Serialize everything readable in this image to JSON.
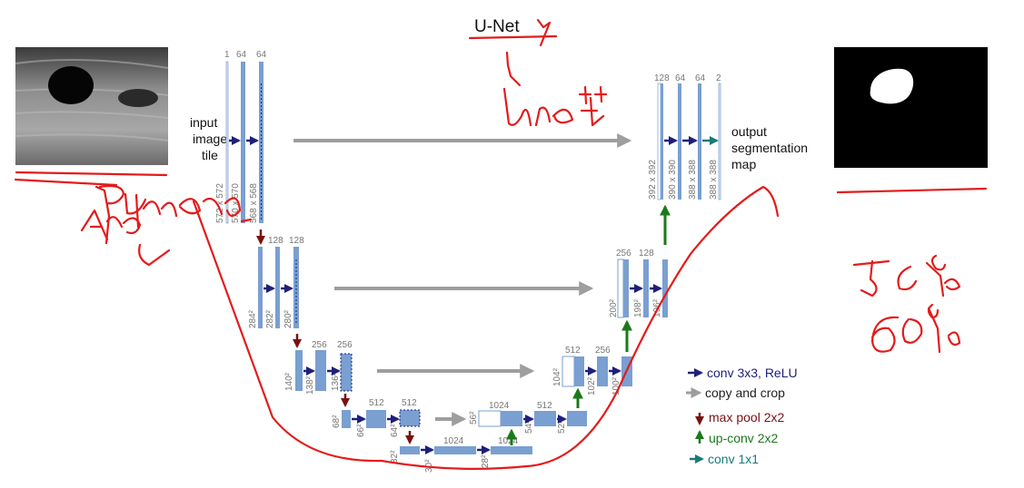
{
  "title": "U-Net",
  "input_label": [
    "input",
    "image",
    "tile"
  ],
  "output_label": [
    "output",
    "segmentation",
    "map"
  ],
  "channels": {
    "l1_enc": [
      "1",
      "64",
      "64"
    ],
    "l2_enc": [
      "128",
      "128"
    ],
    "l3_enc": [
      "256",
      "256"
    ],
    "l4_enc": [
      "512",
      "512"
    ],
    "bottom": [
      "1024",
      "1024"
    ],
    "l4_dec": [
      "1024",
      "512"
    ],
    "l3_dec": [
      "512",
      "256"
    ],
    "l2_dec": [
      "256",
      "128"
    ],
    "l1_dec": [
      "128",
      "64",
      "64",
      "2"
    ]
  },
  "dims": {
    "l1_enc": [
      "572 x 572",
      "570 x 570",
      "568 x 568"
    ],
    "l2_enc": [
      "284²",
      "282²",
      "280²"
    ],
    "l3_enc": [
      "140²",
      "138²",
      "136²"
    ],
    "l4_enc": [
      "68²",
      "66²",
      "64²"
    ],
    "bottom": [
      "32²",
      "30²",
      "28²"
    ],
    "l4_dec": [
      "56²",
      "54²",
      "52²"
    ],
    "l3_dec": [
      "104²",
      "102²",
      "100²"
    ],
    "l2_dec": [
      "200²",
      "198²",
      "196²"
    ],
    "l1_dec": [
      "392 x 392",
      "390 x 390",
      "388 x 388",
      "388 x 388"
    ]
  },
  "legend": [
    {
      "label": "conv 3x3, ReLU",
      "color": "#1f1f7a",
      "icon": "right-arrow-icon"
    },
    {
      "label": "copy and crop",
      "color": "#9e9e9e",
      "icon": "right-arrow-icon"
    },
    {
      "label": "max pool 2x2",
      "color": "#7a1010",
      "icon": "down-arrow-icon"
    },
    {
      "label": "up-conv 2x2",
      "color": "#1a7a1a",
      "icon": "up-arrow-icon"
    },
    {
      "label": "conv 1x1",
      "color": "#1a7a7a",
      "icon": "right-arrow-icon"
    }
  ],
  "colors": {
    "block": "#7a9fd1",
    "block_edge": "#4f76b0",
    "annotation": "#e31b1b"
  }
}
